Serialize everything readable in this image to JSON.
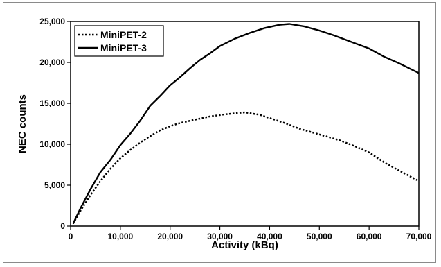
{
  "chart_data": {
    "type": "line",
    "title": "",
    "xlabel": "Activity (kBq)",
    "ylabel": "NEC counts",
    "xlim": [
      0,
      70000
    ],
    "ylim": [
      0,
      25000
    ],
    "x_ticks": [
      0,
      10000,
      20000,
      30000,
      40000,
      50000,
      60000,
      70000
    ],
    "x_tick_labels": [
      "0",
      "10,000",
      "20,000",
      "30,000",
      "40,000",
      "50,000",
      "60,000",
      "70,000"
    ],
    "y_ticks": [
      0,
      5000,
      10000,
      15000,
      20000,
      25000
    ],
    "y_tick_labels": [
      "0",
      "5,000",
      "10,000",
      "15,000",
      "20,000",
      "25,000"
    ],
    "grid": false,
    "legend_position": "top-left",
    "series": [
      {
        "name": "MiniPET-2",
        "line_style": "dotted",
        "color": "#000000",
        "points": [
          [
            500,
            300
          ],
          [
            2000,
            1900
          ],
          [
            4000,
            3800
          ],
          [
            6000,
            5500
          ],
          [
            8000,
            7000
          ],
          [
            10000,
            8300
          ],
          [
            12000,
            9300
          ],
          [
            14000,
            10200
          ],
          [
            16000,
            11000
          ],
          [
            18000,
            11700
          ],
          [
            20000,
            12200
          ],
          [
            22000,
            12600
          ],
          [
            25000,
            13000
          ],
          [
            28000,
            13400
          ],
          [
            31000,
            13650
          ],
          [
            35000,
            13900
          ],
          [
            38000,
            13600
          ],
          [
            40000,
            13200
          ],
          [
            43000,
            12600
          ],
          [
            46000,
            11900
          ],
          [
            50000,
            11200
          ],
          [
            54000,
            10500
          ],
          [
            57000,
            9800
          ],
          [
            60000,
            9000
          ],
          [
            63000,
            7800
          ],
          [
            66000,
            6800
          ],
          [
            70000,
            5500
          ]
        ]
      },
      {
        "name": "MiniPET-3",
        "line_style": "solid",
        "color": "#000000",
        "points": [
          [
            500,
            300
          ],
          [
            2000,
            2200
          ],
          [
            4000,
            4500
          ],
          [
            6000,
            6600
          ],
          [
            8000,
            8100
          ],
          [
            10000,
            9900
          ],
          [
            12000,
            11300
          ],
          [
            14000,
            12900
          ],
          [
            16000,
            14700
          ],
          [
            18000,
            15900
          ],
          [
            20000,
            17200
          ],
          [
            22000,
            18200
          ],
          [
            24000,
            19300
          ],
          [
            26000,
            20300
          ],
          [
            28000,
            21100
          ],
          [
            30000,
            22000
          ],
          [
            33000,
            22900
          ],
          [
            36000,
            23600
          ],
          [
            39000,
            24200
          ],
          [
            42000,
            24600
          ],
          [
            44000,
            24700
          ],
          [
            47000,
            24400
          ],
          [
            50000,
            23900
          ],
          [
            53000,
            23300
          ],
          [
            56000,
            22600
          ],
          [
            60000,
            21700
          ],
          [
            63000,
            20700
          ],
          [
            66000,
            19900
          ],
          [
            70000,
            18700
          ]
        ]
      }
    ]
  }
}
